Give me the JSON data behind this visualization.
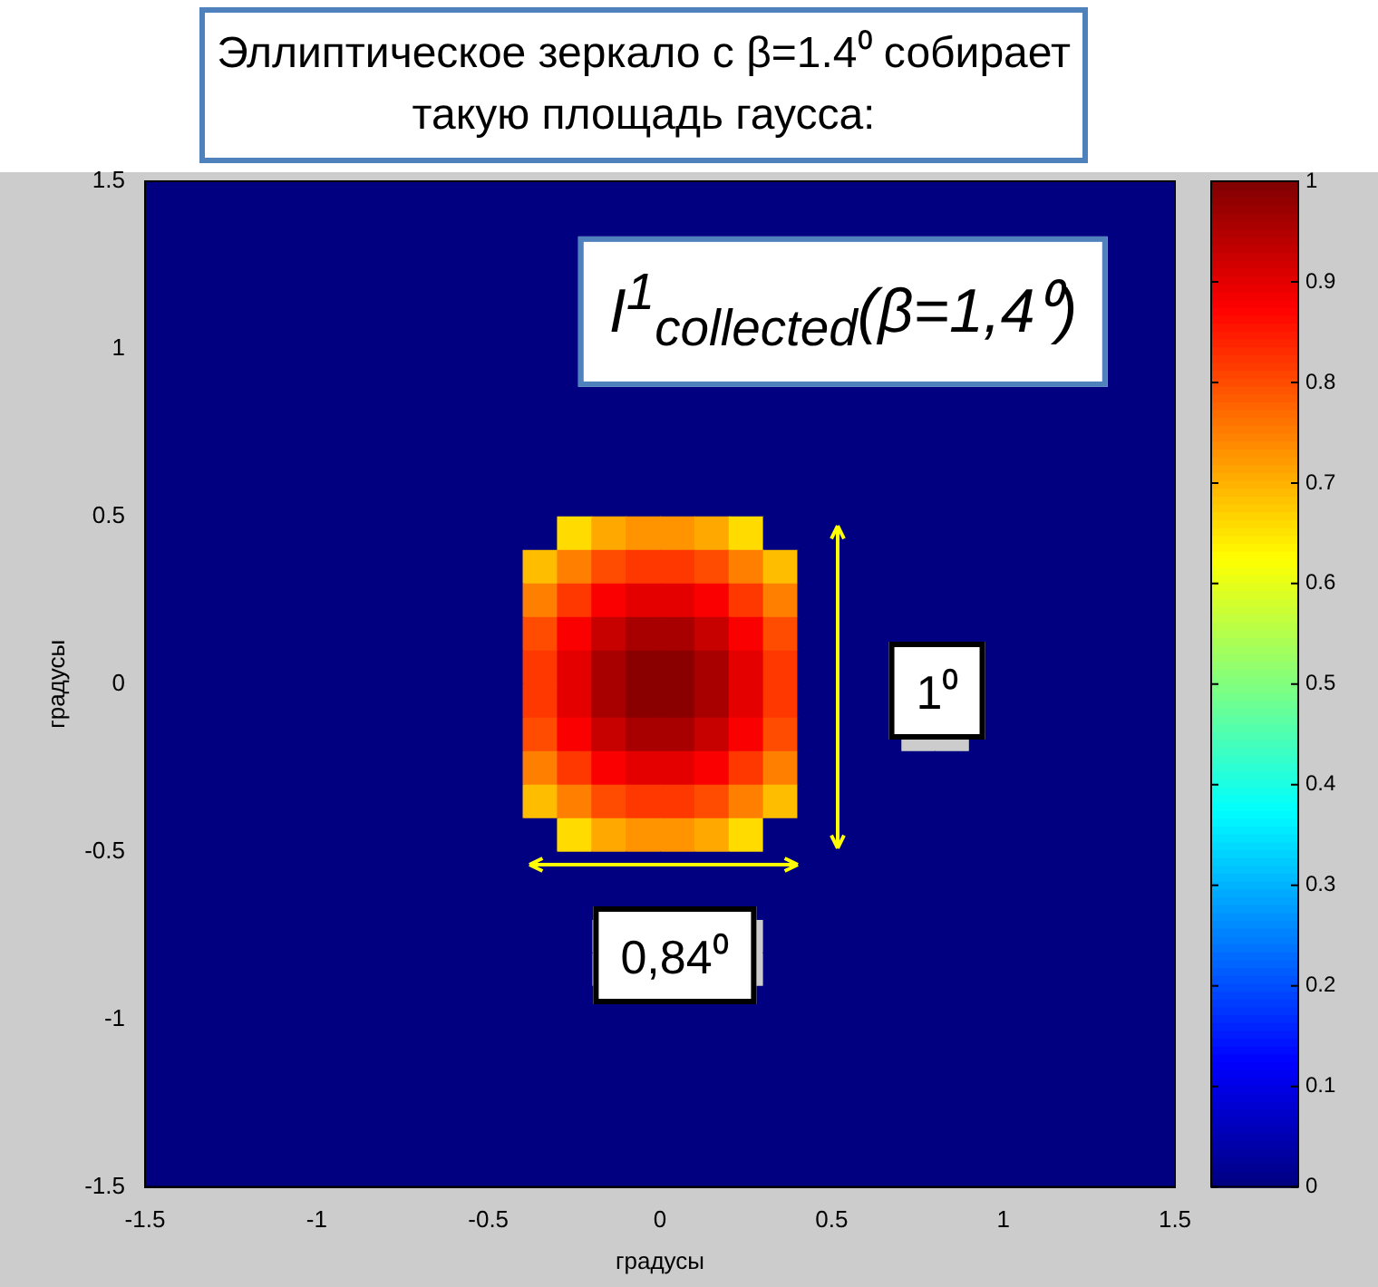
{
  "chart_data": {
    "type": "heatmap",
    "title": "Эллиптическое зеркало с β=1.4⁰ собирает такую площадь гаусса:",
    "xlabel": "градусы",
    "ylabel": "градусы",
    "annotations": [
      "I$^{1}$$_{collected}$(β=1,4⁰)",
      "1⁰",
      "0,84⁰"
    ],
    "x": [
      -1.45,
      -1.35,
      -1.25,
      -1.15,
      -1.05,
      -0.95,
      -0.85,
      -0.75,
      -0.65,
      -0.55,
      -0.45,
      -0.35,
      -0.25,
      -0.15,
      -0.05,
      0.05,
      0.15,
      0.25,
      0.35,
      0.45,
      0.55,
      0.65,
      0.75,
      0.85,
      0.95,
      1.05,
      1.15,
      1.25,
      1.35,
      1.45
    ],
    "xlim": [
      -1.5,
      1.5
    ],
    "ylim": [
      -1.5,
      1.5
    ],
    "xticks": [
      -1.5,
      -1,
      -0.5,
      0,
      0.5,
      1,
      1.5
    ],
    "yticks": [
      -1.5,
      -1,
      -0.5,
      0,
      0.5,
      1,
      1.5
    ],
    "clim": [
      0,
      1
    ],
    "cticks": [
      0,
      0.1,
      0.2,
      0.3,
      0.4,
      0.5,
      0.6,
      0.7,
      0.8,
      0.9,
      1
    ],
    "cells": [
      [
        0,
        0,
        0,
        0,
        0,
        0,
        0,
        0,
        0,
        0,
        0,
        0,
        0,
        0,
        0,
        0,
        0,
        0,
        0,
        0,
        0,
        0,
        0,
        0,
        0,
        0,
        0,
        0,
        0,
        0
      ],
      [
        0,
        0,
        0,
        0,
        0,
        0,
        0,
        0,
        0,
        0,
        0,
        0,
        0,
        0,
        0,
        0,
        0,
        0,
        0,
        0,
        0,
        0,
        0,
        0,
        0,
        0,
        0,
        0,
        0,
        0
      ],
      [
        0,
        0,
        0,
        0,
        0,
        0,
        0,
        0,
        0,
        0,
        0,
        0,
        0,
        null,
        null,
        null,
        null,
        null,
        null,
        null,
        null,
        null,
        null,
        null,
        null,
        null,
        null,
        null,
        0,
        0
      ],
      [
        0,
        0,
        0,
        0,
        0,
        0,
        0,
        0,
        0,
        0,
        0,
        0,
        0,
        null,
        null,
        null,
        null,
        null,
        null,
        null,
        null,
        null,
        null,
        null,
        null,
        null,
        null,
        null,
        0,
        0
      ],
      [
        0,
        0,
        0,
        0,
        0,
        0,
        0,
        0,
        0,
        0,
        0,
        0,
        0,
        null,
        null,
        null,
        null,
        null,
        null,
        null,
        null,
        null,
        null,
        null,
        null,
        null,
        null,
        null,
        0,
        0
      ],
      [
        0,
        0,
        0,
        0,
        0,
        0,
        0,
        0,
        0,
        0,
        0,
        0,
        0,
        null,
        null,
        null,
        null,
        null,
        null,
        null,
        null,
        null,
        null,
        null,
        null,
        null,
        null,
        null,
        0,
        0
      ],
      [
        0,
        0,
        0,
        0,
        0,
        0,
        0,
        0,
        0,
        0,
        0,
        0,
        0,
        0,
        0,
        0,
        0,
        0,
        0,
        0,
        0,
        0,
        0,
        0,
        0,
        0,
        0,
        0,
        0,
        0
      ],
      [
        0,
        0,
        0,
        0,
        0,
        0,
        0,
        0,
        0,
        0,
        0,
        0,
        0,
        0,
        0,
        0,
        0,
        0,
        0,
        0,
        0,
        0,
        0,
        0,
        0,
        0,
        0,
        0,
        0,
        0
      ],
      [
        0,
        0,
        0,
        0,
        0,
        0,
        0,
        0,
        0,
        0,
        0,
        0,
        0,
        0,
        0,
        0,
        0,
        0,
        0,
        0,
        0,
        0,
        0,
        0,
        0,
        0,
        0,
        0,
        0,
        0
      ],
      [
        0,
        0,
        0,
        0,
        0,
        0,
        0,
        0,
        0,
        0,
        0,
        0,
        0,
        0,
        0,
        0,
        0,
        0,
        0,
        0,
        0,
        0,
        0,
        0,
        0,
        0,
        0,
        0,
        0,
        0
      ],
      [
        0,
        0,
        0,
        0,
        0,
        0,
        0,
        0,
        0,
        0,
        0,
        0,
        0.66,
        0.71,
        0.73,
        0.73,
        0.71,
        0.66,
        0,
        0,
        0,
        0,
        0,
        0,
        0,
        0,
        0,
        0,
        0,
        0
      ],
      [
        0,
        0,
        0,
        0,
        0,
        0,
        0,
        0,
        0,
        0,
        0,
        0.69,
        0.75,
        0.8,
        0.82,
        0.82,
        0.8,
        0.75,
        0.69,
        0,
        0,
        0,
        0,
        0,
        0,
        0,
        0,
        0,
        0,
        0
      ],
      [
        0,
        0,
        0,
        0,
        0,
        0,
        0,
        0,
        0,
        0,
        0,
        0.75,
        0.82,
        0.88,
        0.9,
        0.9,
        0.88,
        0.82,
        0.75,
        0,
        0,
        0,
        0,
        0,
        0,
        0,
        0,
        0,
        0,
        0
      ],
      [
        0,
        0,
        0,
        0,
        0,
        0,
        0,
        0,
        0,
        0,
        0,
        0.8,
        0.88,
        0.93,
        0.96,
        0.96,
        0.93,
        0.88,
        0.8,
        0,
        0,
        0,
        0,
        0,
        0,
        0,
        0,
        0,
        0,
        0
      ],
      [
        0,
        0,
        0,
        0,
        0,
        0,
        0,
        0,
        0,
        0,
        0,
        0.82,
        0.9,
        0.96,
        0.99,
        0.99,
        0.96,
        0.9,
        0.82,
        0,
        0,
        0,
        null,
        null,
        0,
        0,
        0,
        0,
        0,
        0
      ],
      [
        0,
        0,
        0,
        0,
        0,
        0,
        0,
        0,
        0,
        0,
        0,
        0.82,
        0.9,
        0.96,
        0.99,
        0.99,
        0.96,
        0.9,
        0.82,
        0,
        0,
        0,
        null,
        null,
        0,
        0,
        0,
        0,
        0,
        0
      ],
      [
        0,
        0,
        0,
        0,
        0,
        0,
        0,
        0,
        0,
        0,
        0,
        0.8,
        0.88,
        0.93,
        0.96,
        0.96,
        0.93,
        0.88,
        0.8,
        0,
        0,
        0,
        null,
        null,
        0,
        0,
        0,
        0,
        0,
        0
      ],
      [
        0,
        0,
        0,
        0,
        0,
        0,
        0,
        0,
        0,
        0,
        0,
        0.75,
        0.82,
        0.88,
        0.9,
        0.9,
        0.88,
        0.82,
        0.75,
        0,
        0,
        0,
        0,
        0,
        0,
        0,
        0,
        0,
        0,
        0
      ],
      [
        0,
        0,
        0,
        0,
        0,
        0,
        0,
        0,
        0,
        0,
        0,
        0.69,
        0.75,
        0.8,
        0.82,
        0.82,
        0.8,
        0.75,
        0.69,
        0,
        0,
        0,
        0,
        0,
        0,
        0,
        0,
        0,
        0,
        0
      ],
      [
        0,
        0,
        0,
        0,
        0,
        0,
        0,
        0,
        0,
        0,
        0,
        0,
        0.66,
        0.71,
        0.73,
        0.73,
        0.71,
        0.66,
        0,
        0,
        0,
        0,
        0,
        0,
        0,
        0,
        0,
        0,
        0,
        0
      ],
      [
        0,
        0,
        0,
        0,
        0,
        0,
        0,
        0,
        0,
        0,
        0,
        0,
        0,
        0,
        0,
        0,
        0,
        0,
        0,
        0,
        0,
        0,
        0,
        0,
        0,
        0,
        0,
        0,
        0,
        0
      ],
      [
        0,
        0,
        0,
        0,
        0,
        0,
        0,
        0,
        0,
        0,
        0,
        0,
        0,
        0,
        0,
        0,
        0,
        0,
        0,
        0,
        0,
        0,
        0,
        0,
        0,
        0,
        0,
        0,
        0,
        0
      ],
      [
        0,
        0,
        0,
        0,
        0,
        0,
        0,
        0,
        0,
        0,
        0,
        0,
        0,
        null,
        null,
        null,
        null,
        null,
        0,
        0,
        0,
        0,
        0,
        0,
        0,
        0,
        0,
        0,
        0,
        0
      ],
      [
        0,
        0,
        0,
        0,
        0,
        0,
        0,
        0,
        0,
        0,
        0,
        0,
        0,
        null,
        null,
        null,
        null,
        null,
        0,
        0,
        0,
        0,
        0,
        0,
        0,
        0,
        0,
        0,
        0,
        0
      ],
      [
        0,
        0,
        0,
        0,
        0,
        0,
        0,
        0,
        0,
        0,
        0,
        0,
        0,
        0,
        0,
        0,
        0,
        0,
        0,
        0,
        0,
        0,
        0,
        0,
        0,
        0,
        0,
        0,
        0,
        0
      ],
      [
        0,
        0,
        0,
        0,
        0,
        0,
        0,
        0,
        0,
        0,
        0,
        0,
        0,
        0,
        0,
        0,
        0,
        0,
        0,
        0,
        0,
        0,
        0,
        0,
        0,
        0,
        0,
        0,
        0,
        0
      ],
      [
        0,
        0,
        0,
        0,
        0,
        0,
        0,
        0,
        0,
        0,
        0,
        0,
        0,
        0,
        0,
        0,
        0,
        0,
        0,
        0,
        0,
        0,
        0,
        0,
        0,
        0,
        0,
        0,
        0,
        0
      ],
      [
        0,
        0,
        0,
        0,
        0,
        0,
        0,
        0,
        0,
        0,
        0,
        0,
        0,
        0,
        0,
        0,
        0,
        0,
        0,
        0,
        0,
        0,
        0,
        0,
        0,
        0,
        0,
        0,
        0,
        0
      ],
      [
        0,
        0,
        0,
        0,
        0,
        0,
        0,
        0,
        0,
        0,
        0,
        0,
        0,
        0,
        0,
        0,
        0,
        0,
        0,
        0,
        0,
        0,
        0,
        0,
        0,
        0,
        0,
        0,
        0,
        0
      ],
      [
        0,
        0,
        0,
        0,
        0,
        0,
        0,
        0,
        0,
        0,
        0,
        0,
        0,
        0,
        0,
        0,
        0,
        0,
        0,
        0,
        0,
        0,
        0,
        0,
        0,
        0,
        0,
        0,
        0,
        0
      ]
    ]
  }
}
